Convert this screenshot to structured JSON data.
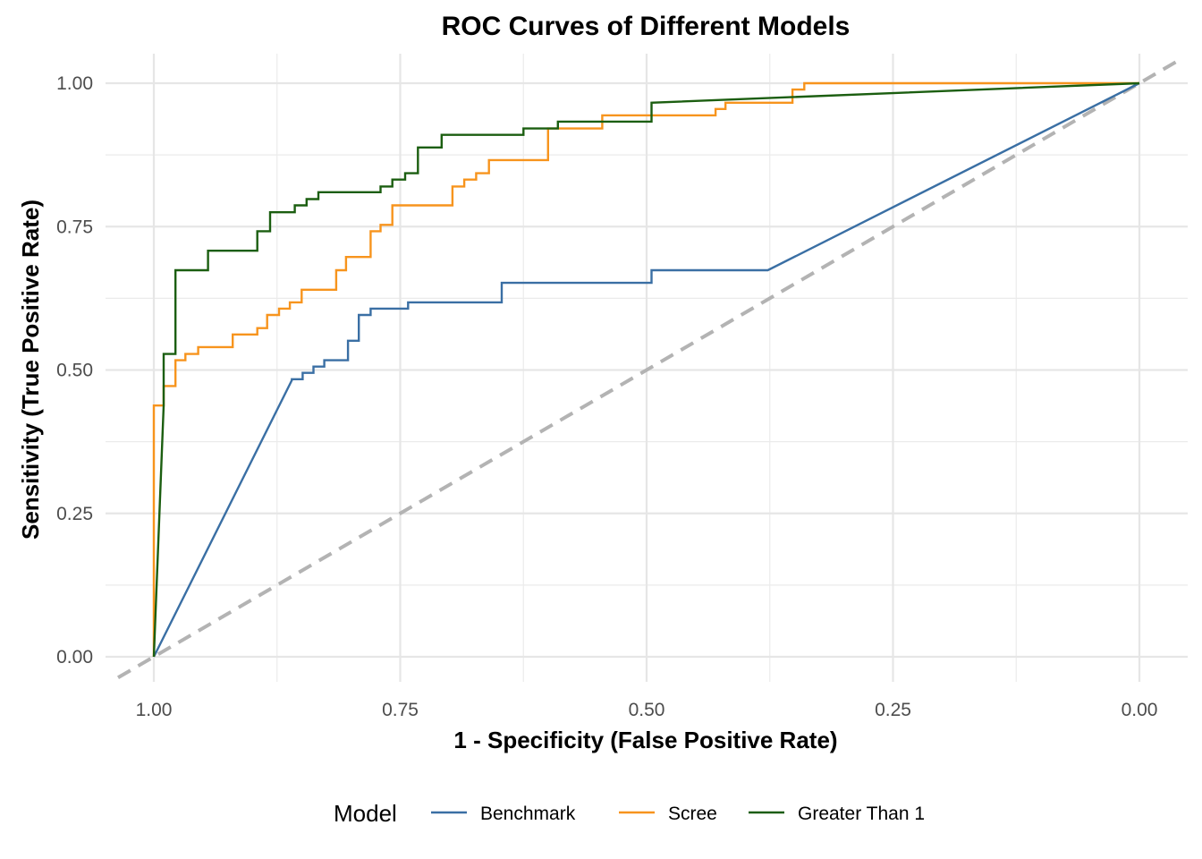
{
  "chart_data": {
    "type": "line",
    "title": "ROC Curves of Different Models",
    "xlabel": "1 - Specificity (False Positive Rate)",
    "ylabel": "Sensitivity (True Positive Rate)",
    "x_reversed": true,
    "xlim": [
      1.0,
      0.0
    ],
    "ylim": [
      0.0,
      1.0
    ],
    "x_ticks": [
      "1.00",
      "0.75",
      "0.50",
      "0.25",
      "0.00"
    ],
    "y_ticks": [
      "0.00",
      "0.25",
      "0.50",
      "0.75",
      "1.00"
    ],
    "x_tick_values": [
      1.0,
      0.75,
      0.5,
      0.25,
      0.0
    ],
    "y_tick_values": [
      0.0,
      0.25,
      0.5,
      0.75,
      1.0
    ],
    "grid": true,
    "legend": {
      "title": "Model",
      "position": "bottom"
    },
    "reference_line": {
      "style": "dashed",
      "color": "#b3b3b3",
      "x": [
        1.0,
        0.0
      ],
      "y": [
        0.0,
        1.0
      ]
    },
    "series": [
      {
        "name": "Benchmark",
        "color": "#3a6fa4",
        "points": [
          [
            1.0,
            0.0
          ],
          [
            0.86,
            0.482
          ],
          [
            0.86,
            0.484
          ],
          [
            0.849,
            0.484
          ],
          [
            0.849,
            0.495
          ],
          [
            0.838,
            0.495
          ],
          [
            0.838,
            0.506
          ],
          [
            0.827,
            0.506
          ],
          [
            0.827,
            0.517
          ],
          [
            0.803,
            0.517
          ],
          [
            0.803,
            0.551
          ],
          [
            0.792,
            0.551
          ],
          [
            0.792,
            0.596
          ],
          [
            0.78,
            0.596
          ],
          [
            0.78,
            0.607
          ],
          [
            0.742,
            0.607
          ],
          [
            0.742,
            0.618
          ],
          [
            0.647,
            0.618
          ],
          [
            0.647,
            0.652
          ],
          [
            0.495,
            0.652
          ],
          [
            0.495,
            0.674
          ],
          [
            0.377,
            0.674
          ],
          [
            0.0,
            1.0
          ]
        ]
      },
      {
        "name": "Scree",
        "color": "#f7941d",
        "points": [
          [
            1.0,
            0.0
          ],
          [
            1.0,
            0.438
          ],
          [
            0.99,
            0.438
          ],
          [
            0.99,
            0.472
          ],
          [
            0.978,
            0.472
          ],
          [
            0.978,
            0.517
          ],
          [
            0.968,
            0.517
          ],
          [
            0.968,
            0.528
          ],
          [
            0.955,
            0.528
          ],
          [
            0.955,
            0.54
          ],
          [
            0.92,
            0.54
          ],
          [
            0.92,
            0.562
          ],
          [
            0.895,
            0.562
          ],
          [
            0.895,
            0.573
          ],
          [
            0.885,
            0.573
          ],
          [
            0.885,
            0.596
          ],
          [
            0.873,
            0.596
          ],
          [
            0.873,
            0.607
          ],
          [
            0.862,
            0.607
          ],
          [
            0.862,
            0.618
          ],
          [
            0.85,
            0.618
          ],
          [
            0.85,
            0.64
          ],
          [
            0.815,
            0.64
          ],
          [
            0.815,
            0.674
          ],
          [
            0.805,
            0.674
          ],
          [
            0.805,
            0.697
          ],
          [
            0.78,
            0.697
          ],
          [
            0.78,
            0.742
          ],
          [
            0.77,
            0.742
          ],
          [
            0.77,
            0.753
          ],
          [
            0.758,
            0.753
          ],
          [
            0.758,
            0.787
          ],
          [
            0.697,
            0.787
          ],
          [
            0.697,
            0.82
          ],
          [
            0.685,
            0.82
          ],
          [
            0.685,
            0.832
          ],
          [
            0.673,
            0.832
          ],
          [
            0.673,
            0.843
          ],
          [
            0.66,
            0.843
          ],
          [
            0.66,
            0.866
          ],
          [
            0.6,
            0.866
          ],
          [
            0.6,
            0.921
          ],
          [
            0.545,
            0.921
          ],
          [
            0.545,
            0.944
          ],
          [
            0.43,
            0.944
          ],
          [
            0.43,
            0.955
          ],
          [
            0.42,
            0.955
          ],
          [
            0.42,
            0.966
          ],
          [
            0.352,
            0.966
          ],
          [
            0.352,
            0.989
          ],
          [
            0.34,
            0.989
          ],
          [
            0.34,
            1.0
          ],
          [
            0.0,
            1.0
          ]
        ]
      },
      {
        "name": "Greater Than 1",
        "color": "#1b5e10",
        "points": [
          [
            1.0,
            0.0
          ],
          [
            0.99,
            0.438
          ],
          [
            0.99,
            0.528
          ],
          [
            0.978,
            0.528
          ],
          [
            0.978,
            0.674
          ],
          [
            0.945,
            0.674
          ],
          [
            0.945,
            0.708
          ],
          [
            0.895,
            0.708
          ],
          [
            0.895,
            0.742
          ],
          [
            0.882,
            0.742
          ],
          [
            0.882,
            0.775
          ],
          [
            0.857,
            0.775
          ],
          [
            0.857,
            0.787
          ],
          [
            0.845,
            0.787
          ],
          [
            0.845,
            0.798
          ],
          [
            0.833,
            0.798
          ],
          [
            0.833,
            0.81
          ],
          [
            0.77,
            0.81
          ],
          [
            0.77,
            0.82
          ],
          [
            0.758,
            0.82
          ],
          [
            0.758,
            0.832
          ],
          [
            0.745,
            0.832
          ],
          [
            0.745,
            0.843
          ],
          [
            0.732,
            0.843
          ],
          [
            0.732,
            0.888
          ],
          [
            0.708,
            0.888
          ],
          [
            0.708,
            0.91
          ],
          [
            0.625,
            0.91
          ],
          [
            0.625,
            0.921
          ],
          [
            0.59,
            0.921
          ],
          [
            0.59,
            0.933
          ],
          [
            0.495,
            0.933
          ],
          [
            0.495,
            0.966
          ],
          [
            0.0,
            1.0
          ]
        ]
      }
    ]
  }
}
